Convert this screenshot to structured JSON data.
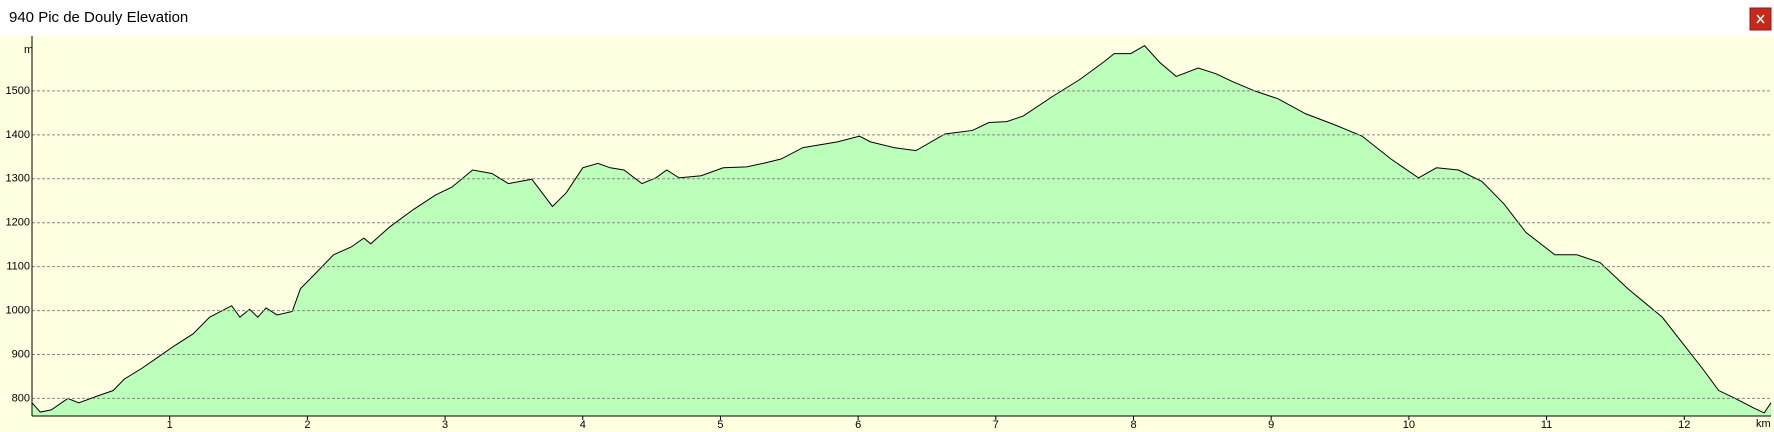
{
  "chart_data": {
    "type": "area",
    "title": "940 Pic de Douly Elevation",
    "ylabel": "m",
    "xlabel": "km",
    "x": [
      0,
      0.06,
      0.14,
      0.26,
      0.34,
      0.47,
      0.59,
      0.67,
      0.8,
      0.92,
      1.04,
      1.17,
      1.29,
      1.45,
      1.51,
      1.58,
      1.64,
      1.7,
      1.78,
      1.89,
      1.95,
      2.07,
      2.19,
      2.32,
      2.41,
      2.46,
      2.6,
      2.77,
      2.93,
      3.05,
      3.2,
      3.34,
      3.46,
      3.63,
      3.78,
      3.88,
      4.0,
      4.11,
      4.2,
      4.3,
      4.43,
      4.53,
      4.61,
      4.7,
      4.86,
      5.02,
      5.19,
      5.31,
      5.44,
      5.6,
      5.85,
      6.01,
      6.09,
      6.26,
      6.42,
      6.63,
      6.83,
      6.95,
      7.08,
      7.2,
      7.41,
      7.61,
      7.78,
      7.86,
      7.98,
      8.08,
      8.19,
      8.31,
      8.47,
      8.6,
      8.72,
      8.88,
      9.05,
      9.25,
      9.46,
      9.66,
      9.87,
      10.07,
      10.2,
      10.36,
      10.53,
      10.69,
      10.85,
      11.06,
      11.22,
      11.39,
      11.59,
      11.84,
      12.0,
      12.13,
      12.25,
      12.37,
      12.5,
      12.58,
      12.63
    ],
    "values": [
      790,
      769,
      774,
      800,
      790,
      805,
      818,
      844,
      869,
      895,
      921,
      947,
      985,
      1011,
      985,
      1003,
      985,
      1006,
      990,
      998,
      1050,
      1088,
      1127,
      1145,
      1165,
      1152,
      1191,
      1230,
      1263,
      1281,
      1320,
      1312,
      1289,
      1299,
      1237,
      1268,
      1325,
      1335,
      1325,
      1320,
      1289,
      1302,
      1320,
      1302,
      1307,
      1325,
      1327,
      1335,
      1345,
      1371,
      1384,
      1397,
      1384,
      1371,
      1364,
      1402,
      1410,
      1428,
      1430,
      1443,
      1487,
      1526,
      1565,
      1585,
      1585,
      1603,
      1565,
      1533,
      1552,
      1539,
      1521,
      1500,
      1482,
      1448,
      1423,
      1397,
      1345,
      1302,
      1325,
      1320,
      1294,
      1243,
      1178,
      1127,
      1127,
      1109,
      1050,
      985,
      921,
      869,
      818,
      800,
      779,
      767,
      790
    ],
    "color": "#bbffbb",
    "line_color": "#000000",
    "xlim": [
      0,
      12.63
    ],
    "ylim": [
      760,
      1625
    ],
    "xticks": [
      1,
      2,
      3,
      4,
      5,
      6,
      7,
      8,
      9,
      10,
      11,
      12
    ],
    "yticks": [
      800,
      900,
      1000,
      1100,
      1200,
      1300,
      1400,
      1500
    ],
    "grid": true
  }
}
